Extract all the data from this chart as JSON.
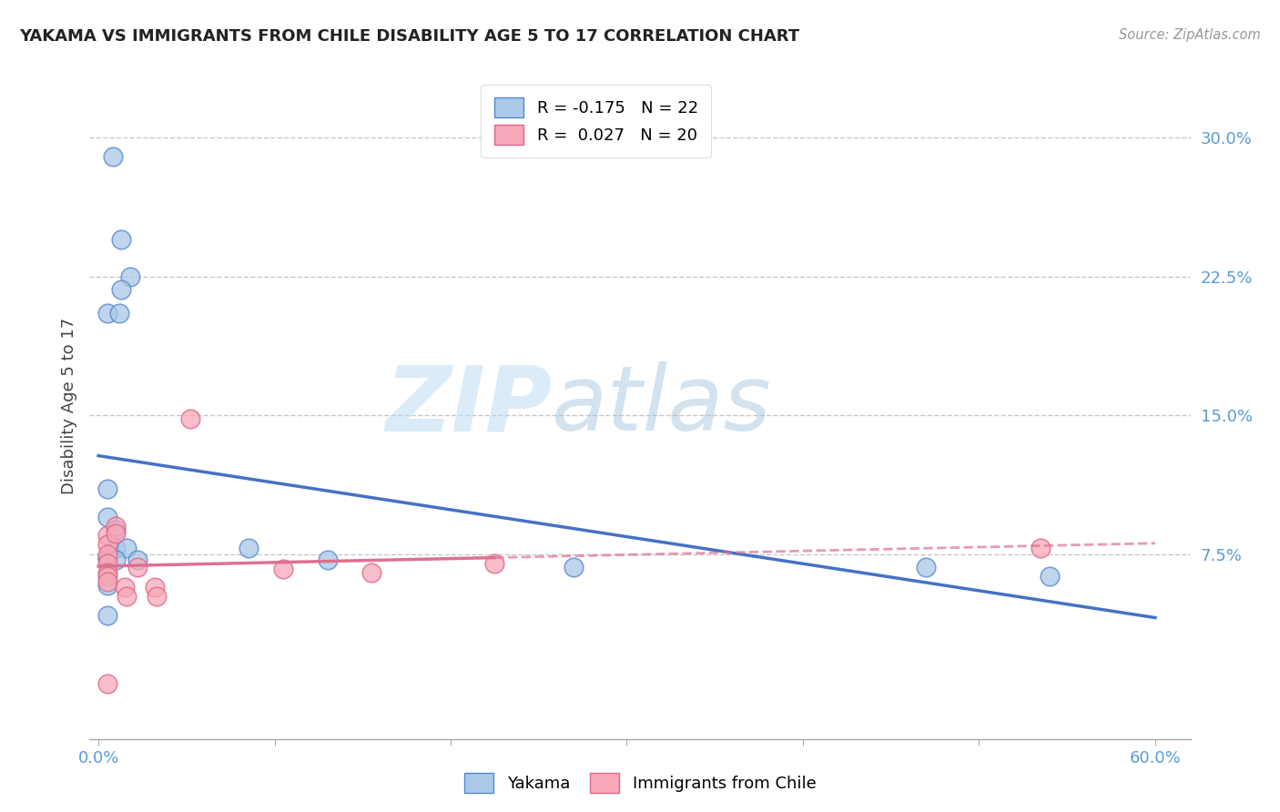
{
  "title": "YAKAMA VS IMMIGRANTS FROM CHILE DISABILITY AGE 5 TO 17 CORRELATION CHART",
  "source": "Source: ZipAtlas.com",
  "xlabel": "",
  "ylabel": "Disability Age 5 to 17",
  "xlim": [
    -0.005,
    0.62
  ],
  "ylim": [
    -0.025,
    0.335
  ],
  "xtick_positions": [
    0.0,
    0.1,
    0.2,
    0.3,
    0.4,
    0.5,
    0.6
  ],
  "xtick_labels_show": [
    "0.0%",
    "",
    "",
    "",
    "",
    "",
    "60.0%"
  ],
  "yticks_right": [
    0.075,
    0.15,
    0.225,
    0.3
  ],
  "ytick_labels_right": [
    "7.5%",
    "15.0%",
    "22.5%",
    "30.0%"
  ],
  "grid_color": "#c8c8c8",
  "background_color": "#ffffff",
  "yakama_color": "#aac8e8",
  "chile_color": "#f8a8b8",
  "yakama_edge_color": "#5588cc",
  "chile_edge_color": "#dd6688",
  "trend_blue": "#4472c4",
  "trend_pink": "#dd7090",
  "r_yakama": -0.175,
  "n_yakama": 22,
  "r_chile": 0.027,
  "n_chile": 20,
  "legend_label_yakama": "Yakama",
  "legend_label_chile": "Immigrants from Chile",
  "watermark_zip": "ZIP",
  "watermark_atlas": "atlas",
  "yakama_x": [
    0.008,
    0.013,
    0.018,
    0.013,
    0.005,
    0.012,
    0.005,
    0.005,
    0.01,
    0.01,
    0.016,
    0.005,
    0.005,
    0.01,
    0.022,
    0.085,
    0.13,
    0.27,
    0.47,
    0.54,
    0.005,
    0.005
  ],
  "yakama_y": [
    0.29,
    0.245,
    0.225,
    0.218,
    0.205,
    0.205,
    0.11,
    0.095,
    0.088,
    0.078,
    0.078,
    0.073,
    0.073,
    0.072,
    0.072,
    0.078,
    0.072,
    0.068,
    0.068,
    0.063,
    0.058,
    0.042
  ],
  "chile_x": [
    0.005,
    0.005,
    0.005,
    0.005,
    0.005,
    0.005,
    0.005,
    0.01,
    0.01,
    0.015,
    0.016,
    0.022,
    0.032,
    0.033,
    0.052,
    0.105,
    0.155,
    0.225,
    0.535,
    0.005
  ],
  "chile_y": [
    0.085,
    0.08,
    0.075,
    0.07,
    0.065,
    0.063,
    0.06,
    0.09,
    0.086,
    0.057,
    0.052,
    0.068,
    0.057,
    0.052,
    0.148,
    0.067,
    0.065,
    0.07,
    0.078,
    0.005
  ]
}
